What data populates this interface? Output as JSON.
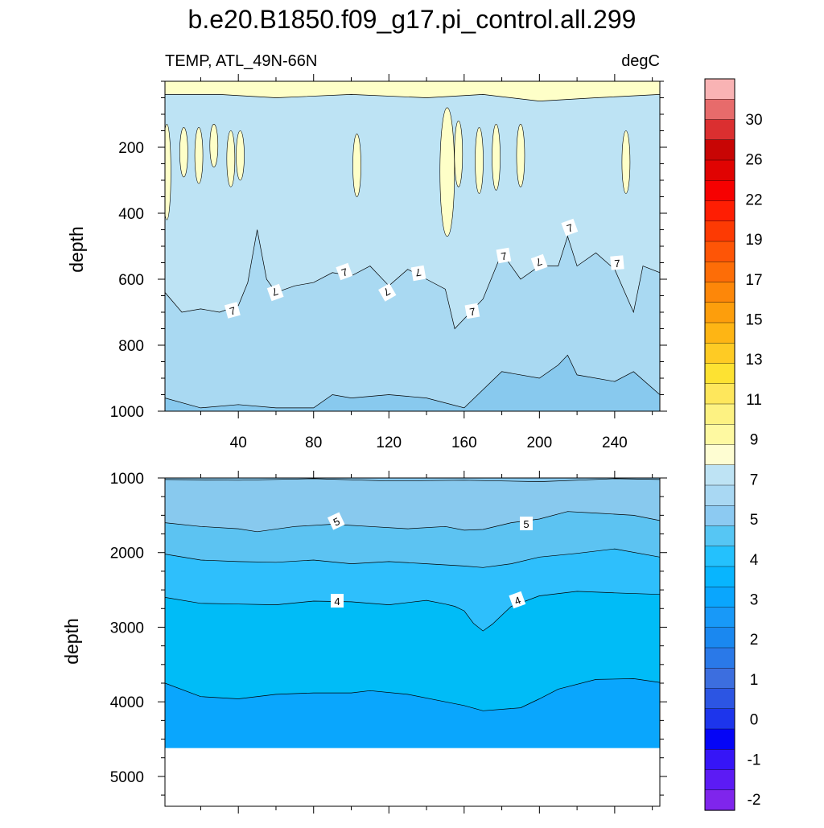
{
  "figure": {
    "title": "b.e20.B1850.f09_g17.pi_control.all.299",
    "left_subtitle": "TEMP, ATL_49N-66N",
    "right_subtitle": "degC"
  },
  "chart_data": [
    {
      "type": "contour",
      "panel": "upper",
      "ylabel": "depth",
      "xlabel": "",
      "x_ticks": [
        40,
        80,
        120,
        160,
        200,
        240
      ],
      "y_ticks": [
        200,
        400,
        600,
        800,
        1000
      ],
      "xlim": [
        1,
        264
      ],
      "ylim": [
        1000,
        0
      ],
      "y_reversed": true,
      "contour_labels": [
        "7",
        "7",
        "7",
        "7",
        "7",
        "7",
        "7",
        "7",
        "7",
        "7"
      ],
      "isotherms": [
        {
          "level": 7,
          "depth": [
            [
              1,
              640
            ],
            [
              10,
              700
            ],
            [
              20,
              690
            ],
            [
              30,
              700
            ],
            [
              40,
              680
            ],
            [
              45,
              610
            ],
            [
              50,
              450
            ],
            [
              55,
              600
            ],
            [
              60,
              640
            ],
            [
              70,
              620
            ],
            [
              80,
              610
            ],
            [
              90,
              580
            ],
            [
              100,
              590
            ],
            [
              110,
              560
            ],
            [
              120,
              620
            ],
            [
              130,
              570
            ],
            [
              140,
              600
            ],
            [
              150,
              630
            ],
            [
              155,
              750
            ],
            [
              160,
              720
            ],
            [
              170,
              660
            ],
            [
              180,
              520
            ],
            [
              190,
              600
            ],
            [
              200,
              560
            ],
            [
              210,
              560
            ],
            [
              215,
              470
            ],
            [
              220,
              560
            ],
            [
              230,
              520
            ],
            [
              240,
              570
            ],
            [
              250,
              700
            ],
            [
              255,
              560
            ],
            [
              264,
              580
            ]
          ]
        },
        {
          "level": 6,
          "depth": [
            [
              1,
              960
            ],
            [
              20,
              990
            ],
            [
              40,
              980
            ],
            [
              60,
              990
            ],
            [
              80,
              990
            ],
            [
              90,
              950
            ],
            [
              100,
              960
            ],
            [
              120,
              950
            ],
            [
              140,
              960
            ],
            [
              160,
              990
            ],
            [
              180,
              880
            ],
            [
              200,
              900
            ],
            [
              210,
              860
            ],
            [
              215,
              830
            ],
            [
              220,
              890
            ],
            [
              240,
              910
            ],
            [
              250,
              880
            ],
            [
              264,
              950
            ]
          ]
        },
        {
          "level": 8,
          "depth": [
            [
              1,
              40
            ],
            [
              30,
              40
            ],
            [
              60,
              50
            ],
            [
              100,
              40
            ],
            [
              140,
              50
            ],
            [
              170,
              40
            ],
            [
              200,
              60
            ],
            [
              230,
              50
            ],
            [
              264,
              40
            ]
          ]
        }
      ],
      "warm_lenses_9C": [
        [
          2,
          130,
          420
        ],
        [
          11,
          140,
          290
        ],
        [
          19,
          140,
          310
        ],
        [
          27,
          130,
          260
        ],
        [
          36,
          150,
          320
        ],
        [
          41,
          150,
          300
        ],
        [
          103,
          160,
          350
        ],
        [
          151,
          80,
          470
        ],
        [
          157,
          120,
          320
        ],
        [
          168,
          140,
          340
        ],
        [
          177,
          130,
          330
        ],
        [
          190,
          130,
          320
        ],
        [
          246,
          150,
          340
        ]
      ]
    },
    {
      "type": "contour",
      "panel": "lower",
      "ylabel": "depth",
      "xlabel": "",
      "x_ticks": [
        40,
        80,
        120,
        160,
        200,
        240
      ],
      "y_ticks": [
        1000,
        2000,
        3000,
        4000,
        5000
      ],
      "xlim": [
        1,
        264
      ],
      "ylim": [
        5400,
        1000
      ],
      "y_reversed": true,
      "bottom_depth": 4620,
      "contour_labels": [
        "5",
        "5",
        "4",
        "4"
      ],
      "isotherms": [
        {
          "level": 6,
          "depth": [
            [
              1,
              1020
            ],
            [
              40,
              1030
            ],
            [
              80,
              1010
            ],
            [
              120,
              1040
            ],
            [
              160,
              1030
            ],
            [
              200,
              1050
            ],
            [
              240,
              1010
            ],
            [
              264,
              1020
            ]
          ]
        },
        {
          "level": 5,
          "depth": [
            [
              1,
              1600
            ],
            [
              20,
              1650
            ],
            [
              40,
              1680
            ],
            [
              50,
              1720
            ],
            [
              70,
              1650
            ],
            [
              90,
              1620
            ],
            [
              110,
              1650
            ],
            [
              130,
              1680
            ],
            [
              150,
              1650
            ],
            [
              160,
              1700
            ],
            [
              170,
              1690
            ],
            [
              185,
              1600
            ],
            [
              200,
              1550
            ],
            [
              215,
              1450
            ],
            [
              230,
              1470
            ],
            [
              250,
              1500
            ],
            [
              264,
              1570
            ]
          ]
        },
        {
          "level": 4.5,
          "depth": [
            [
              1,
              2020
            ],
            [
              20,
              2100
            ],
            [
              40,
              2120
            ],
            [
              60,
              2130
            ],
            [
              80,
              2100
            ],
            [
              100,
              2150
            ],
            [
              120,
              2120
            ],
            [
              140,
              2150
            ],
            [
              160,
              2180
            ],
            [
              170,
              2200
            ],
            [
              185,
              2150
            ],
            [
              200,
              2060
            ],
            [
              220,
              2010
            ],
            [
              240,
              1950
            ],
            [
              264,
              2060
            ]
          ]
        },
        {
          "level": 4,
          "depth": [
            [
              1,
              2600
            ],
            [
              20,
              2680
            ],
            [
              40,
              2690
            ],
            [
              60,
              2700
            ],
            [
              80,
              2650
            ],
            [
              100,
              2660
            ],
            [
              120,
              2700
            ],
            [
              140,
              2640
            ],
            [
              150,
              2690
            ],
            [
              155,
              2720
            ],
            [
              160,
              2780
            ],
            [
              165,
              2950
            ],
            [
              170,
              3050
            ],
            [
              175,
              2960
            ],
            [
              185,
              2720
            ],
            [
              200,
              2580
            ],
            [
              220,
              2520
            ],
            [
              240,
              2540
            ],
            [
              264,
              2560
            ]
          ]
        },
        {
          "level": 3.5,
          "depth": [
            [
              1,
              3750
            ],
            [
              20,
              3930
            ],
            [
              40,
              3960
            ],
            [
              60,
              3900
            ],
            [
              80,
              3880
            ],
            [
              100,
              3880
            ],
            [
              110,
              3850
            ],
            [
              130,
              3900
            ],
            [
              150,
              4000
            ],
            [
              160,
              4050
            ],
            [
              170,
              4120
            ],
            [
              190,
              4080
            ],
            [
              200,
              3960
            ],
            [
              210,
              3830
            ],
            [
              230,
              3700
            ],
            [
              250,
              3690
            ],
            [
              264,
              3740
            ]
          ]
        }
      ]
    }
  ],
  "colorbar": {
    "labels": [
      "-2",
      "-1",
      "0",
      "1",
      "2",
      "3",
      "4",
      "5",
      "7",
      "9",
      "11",
      "13",
      "15",
      "17",
      "19",
      "22",
      "26",
      "30"
    ],
    "colors": [
      "#7f25ec",
      "#5c1bf4",
      "#3615f7",
      "#0505f6",
      "#1d35ec",
      "#2c55e3",
      "#3c6edf",
      "#2a79e8",
      "#1a88f0",
      "#1899f8",
      "#0aa6fd",
      "#08b5fe",
      "#24c1fd",
      "#56c6f4",
      "#8ccaf2",
      "#a9d8f3",
      "#bee3f4",
      "#fefdd2",
      "#fef9a1",
      "#fdf282",
      "#fee75c",
      "#fde232",
      "#fecb24",
      "#feb514",
      "#fd9e0c",
      "#fd8709",
      "#fd6d07",
      "#fe5506",
      "#fd3a03",
      "#fe1e03",
      "#f60101",
      "#e00302",
      "#c80504",
      "#db2f30",
      "#e76b6b",
      "#f9b3b4"
    ]
  }
}
